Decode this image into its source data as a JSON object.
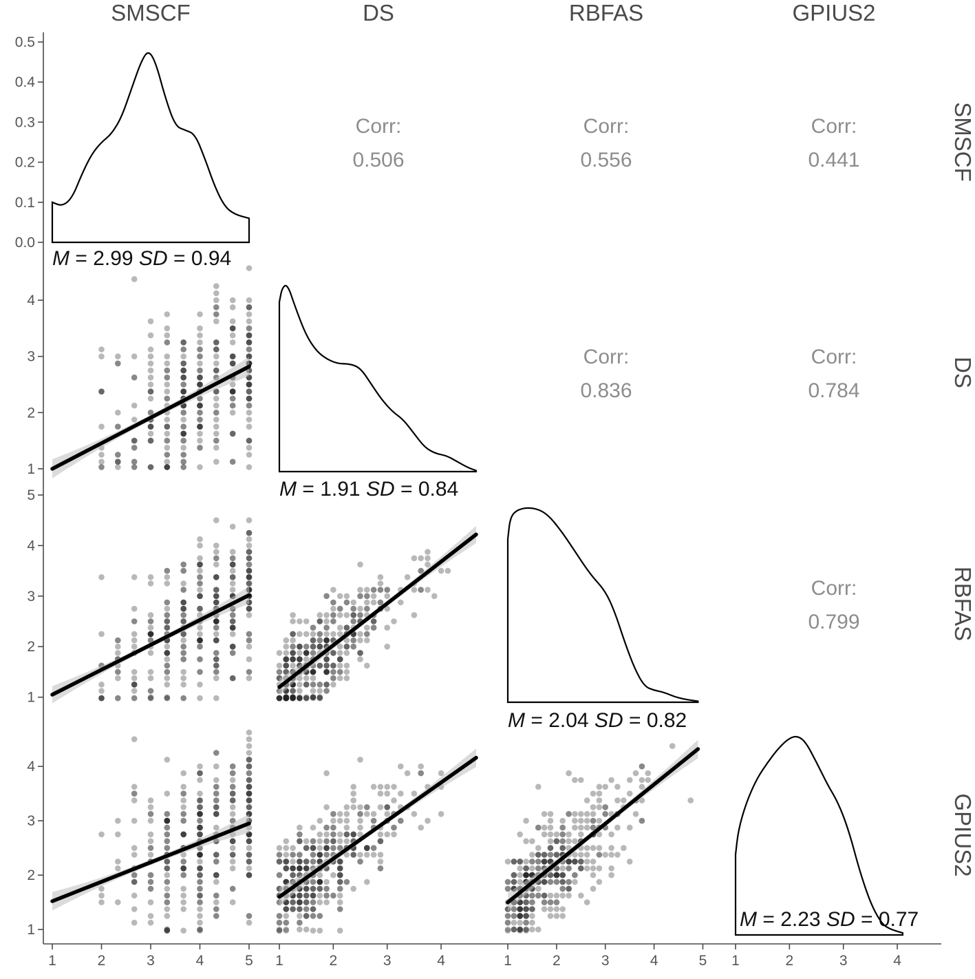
{
  "chart_data": {
    "type": "scatter",
    "figure_kind": "pairs-matrix",
    "variables": [
      "SMSCF",
      "DS",
      "RBFAS",
      "GPIUS2"
    ],
    "grid": false,
    "diagonal_density_ylim": [
      0,
      0.5
    ],
    "diagonal_density_yticks": [
      "0.0",
      "0.1",
      "0.2",
      "0.3",
      "0.4",
      "0.5"
    ],
    "x_ticks": {
      "SMSCF": [
        "1",
        "2",
        "3",
        "4",
        "5"
      ],
      "DS": [
        "1",
        "2",
        "3",
        "4"
      ],
      "RBFAS": [
        "1",
        "2",
        "3",
        "4",
        "5"
      ],
      "GPIUS2": [
        "1",
        "2",
        "3",
        "4"
      ]
    },
    "y_ticks": {
      "DS": [
        "1",
        "2",
        "3",
        "4"
      ],
      "RBFAS": [
        "1",
        "2",
        "3",
        "4",
        "5"
      ],
      "GPIUS2": [
        "1",
        "2",
        "3",
        "4"
      ]
    },
    "x_ranges": {
      "SMSCF": [
        1,
        5
      ],
      "DS": [
        1,
        4.65
      ],
      "RBFAS": [
        1,
        5.05
      ],
      "GPIUS2": [
        1,
        4.65
      ]
    },
    "y_ranges": {
      "DS": [
        0.95,
        4.65
      ],
      "RBFAS": [
        0.9,
        5
      ],
      "GPIUS2": [
        0.9,
        4.75
      ]
    },
    "descriptives": [
      {
        "variable": "SMSCF",
        "mean": 2.99,
        "sd": 0.94
      },
      {
        "variable": "DS",
        "mean": 1.91,
        "sd": 0.84
      },
      {
        "variable": "RBFAS",
        "mean": 2.04,
        "sd": 0.82
      },
      {
        "variable": "GPIUS2",
        "mean": 2.23,
        "sd": 0.77
      }
    ],
    "density_curves": {
      "SMSCF": [
        [
          1,
          0.1
        ],
        [
          1.2,
          0.09
        ],
        [
          1.4,
          0.11
        ],
        [
          1.6,
          0.17
        ],
        [
          1.8,
          0.22
        ],
        [
          2,
          0.25
        ],
        [
          2.2,
          0.27
        ],
        [
          2.4,
          0.31
        ],
        [
          2.6,
          0.38
        ],
        [
          2.8,
          0.45
        ],
        [
          2.95,
          0.48
        ],
        [
          3.1,
          0.45
        ],
        [
          3.3,
          0.36
        ],
        [
          3.5,
          0.29
        ],
        [
          3.7,
          0.28
        ],
        [
          3.9,
          0.27
        ],
        [
          4.1,
          0.21
        ],
        [
          4.3,
          0.14
        ],
        [
          4.5,
          0.09
        ],
        [
          4.7,
          0.07
        ],
        [
          5,
          0.06
        ]
      ],
      "DS": [
        [
          1,
          0.85
        ],
        [
          1.05,
          0.92
        ],
        [
          1.15,
          0.94
        ],
        [
          1.3,
          0.82
        ],
        [
          1.5,
          0.68
        ],
        [
          1.7,
          0.6
        ],
        [
          1.9,
          0.56
        ],
        [
          2.1,
          0.54
        ],
        [
          2.3,
          0.54
        ],
        [
          2.5,
          0.52
        ],
        [
          2.7,
          0.44
        ],
        [
          2.9,
          0.36
        ],
        [
          3.1,
          0.3
        ],
        [
          3.3,
          0.26
        ],
        [
          3.5,
          0.19
        ],
        [
          3.7,
          0.12
        ],
        [
          3.9,
          0.09
        ],
        [
          4.1,
          0.08
        ],
        [
          4.3,
          0.05
        ],
        [
          4.5,
          0.02
        ],
        [
          4.65,
          0.005
        ]
      ],
      "RBFAS": [
        [
          1,
          0.82
        ],
        [
          1.05,
          0.93
        ],
        [
          1.2,
          0.97
        ],
        [
          1.5,
          0.98
        ],
        [
          1.8,
          0.95
        ],
        [
          2.1,
          0.86
        ],
        [
          2.4,
          0.75
        ],
        [
          2.7,
          0.64
        ],
        [
          3.0,
          0.56
        ],
        [
          3.2,
          0.45
        ],
        [
          3.4,
          0.3
        ],
        [
          3.6,
          0.17
        ],
        [
          3.8,
          0.08
        ],
        [
          4.0,
          0.06
        ],
        [
          4.2,
          0.05
        ],
        [
          4.5,
          0.02
        ],
        [
          4.9,
          0.005
        ]
      ],
      "GPIUS2": [
        [
          1,
          0.4
        ],
        [
          1.05,
          0.52
        ],
        [
          1.2,
          0.66
        ],
        [
          1.4,
          0.78
        ],
        [
          1.6,
          0.86
        ],
        [
          1.8,
          0.93
        ],
        [
          2.0,
          0.98
        ],
        [
          2.15,
          0.99
        ],
        [
          2.3,
          0.96
        ],
        [
          2.5,
          0.86
        ],
        [
          2.7,
          0.75
        ],
        [
          2.9,
          0.66
        ],
        [
          3.1,
          0.52
        ],
        [
          3.3,
          0.32
        ],
        [
          3.5,
          0.16
        ],
        [
          3.7,
          0.06
        ],
        [
          3.85,
          0.03
        ],
        [
          4.1,
          0.01
        ]
      ]
    },
    "correlations": [
      {
        "row": "SMSCF",
        "col": "DS",
        "label": "Corr:",
        "value": "0.506"
      },
      {
        "row": "SMSCF",
        "col": "RBFAS",
        "label": "Corr:",
        "value": "0.556"
      },
      {
        "row": "SMSCF",
        "col": "GPIUS2",
        "label": "Corr:",
        "value": "0.441"
      },
      {
        "row": "DS",
        "col": "RBFAS",
        "label": "Corr:",
        "value": "0.836"
      },
      {
        "row": "DS",
        "col": "GPIUS2",
        "label": "Corr:",
        "value": "0.784"
      },
      {
        "row": "RBFAS",
        "col": "GPIUS2",
        "label": "Corr:",
        "value": "0.799"
      }
    ],
    "regression_lines": [
      {
        "x": "SMSCF",
        "y": "DS",
        "x_range": [
          1,
          5
        ],
        "y_at_range": [
          1.0,
          2.82
        ]
      },
      {
        "x": "SMSCF",
        "y": "RBFAS",
        "x_range": [
          1,
          5
        ],
        "y_at_range": [
          1.05,
          3.02
        ]
      },
      {
        "x": "SMSCF",
        "y": "GPIUS2",
        "x_range": [
          1,
          5
        ],
        "y_at_range": [
          1.52,
          2.95
        ]
      },
      {
        "x": "DS",
        "y": "RBFAS",
        "x_range": [
          1,
          4.65
        ],
        "y_at_range": [
          1.2,
          4.22
        ]
      },
      {
        "x": "DS",
        "y": "GPIUS2",
        "x_range": [
          1,
          4.65
        ],
        "y_at_range": [
          1.6,
          4.16
        ]
      },
      {
        "x": "RBFAS",
        "y": "GPIUS2",
        "x_range": [
          1,
          4.9
        ],
        "y_at_range": [
          1.5,
          4.32
        ]
      }
    ]
  }
}
